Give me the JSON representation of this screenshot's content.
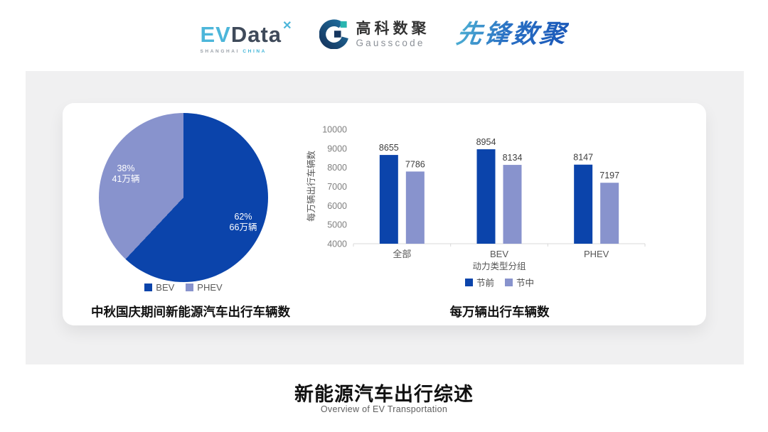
{
  "header": {
    "evdata": {
      "ev": "EV",
      "data": "Data",
      "spark": "✕",
      "sub_left": "SHANGHAI",
      "sub_right": "CHINA"
    },
    "gausscode": {
      "cn": "高科数聚",
      "en": "Gausscode"
    },
    "xianfeng": {
      "text": "先锋数聚"
    }
  },
  "colors": {
    "primary_dark_blue": "#0b44ab",
    "secondary_periwinkle": "#8893cd",
    "panel_gray": "#f0f0f1",
    "evdata_cyan": "#4cb6da",
    "gausscode_navy": "#16365f",
    "gausscode_teal": "#2ab5b0"
  },
  "chart_data": [
    {
      "type": "pie",
      "title": "中秋国庆期间新能源汽车出行车辆数",
      "start": "12-o-clock, clockwise",
      "slices": [
        {
          "label": "BEV",
          "pct": 62,
          "pct_label": "62%",
          "value_label": "66万辆",
          "color": "#0b44ab"
        },
        {
          "label": "PHEV",
          "pct": 38,
          "pct_label": "38%",
          "value_label": "41万辆",
          "color": "#8893cd"
        }
      ],
      "legend_position": "bottom"
    },
    {
      "type": "bar",
      "title": "每万辆出行车辆数",
      "categories": [
        "全部",
        "BEV",
        "PHEV"
      ],
      "series": [
        {
          "name": "节前",
          "color": "#0b44ab",
          "values": [
            8655,
            8954,
            8147
          ]
        },
        {
          "name": "节中",
          "color": "#8893cd",
          "values": [
            7786,
            8134,
            7197
          ]
        }
      ],
      "xlabel": "动力类型分组",
      "ylabel": "每万辆出行车辆数",
      "ylim": [
        4000,
        10000
      ],
      "ytick_step": 1000,
      "grid": false,
      "legend_position": "bottom"
    }
  ],
  "footer": {
    "title": "新能源汽车出行综述",
    "subtitle": "Overview of EV Transportation"
  }
}
